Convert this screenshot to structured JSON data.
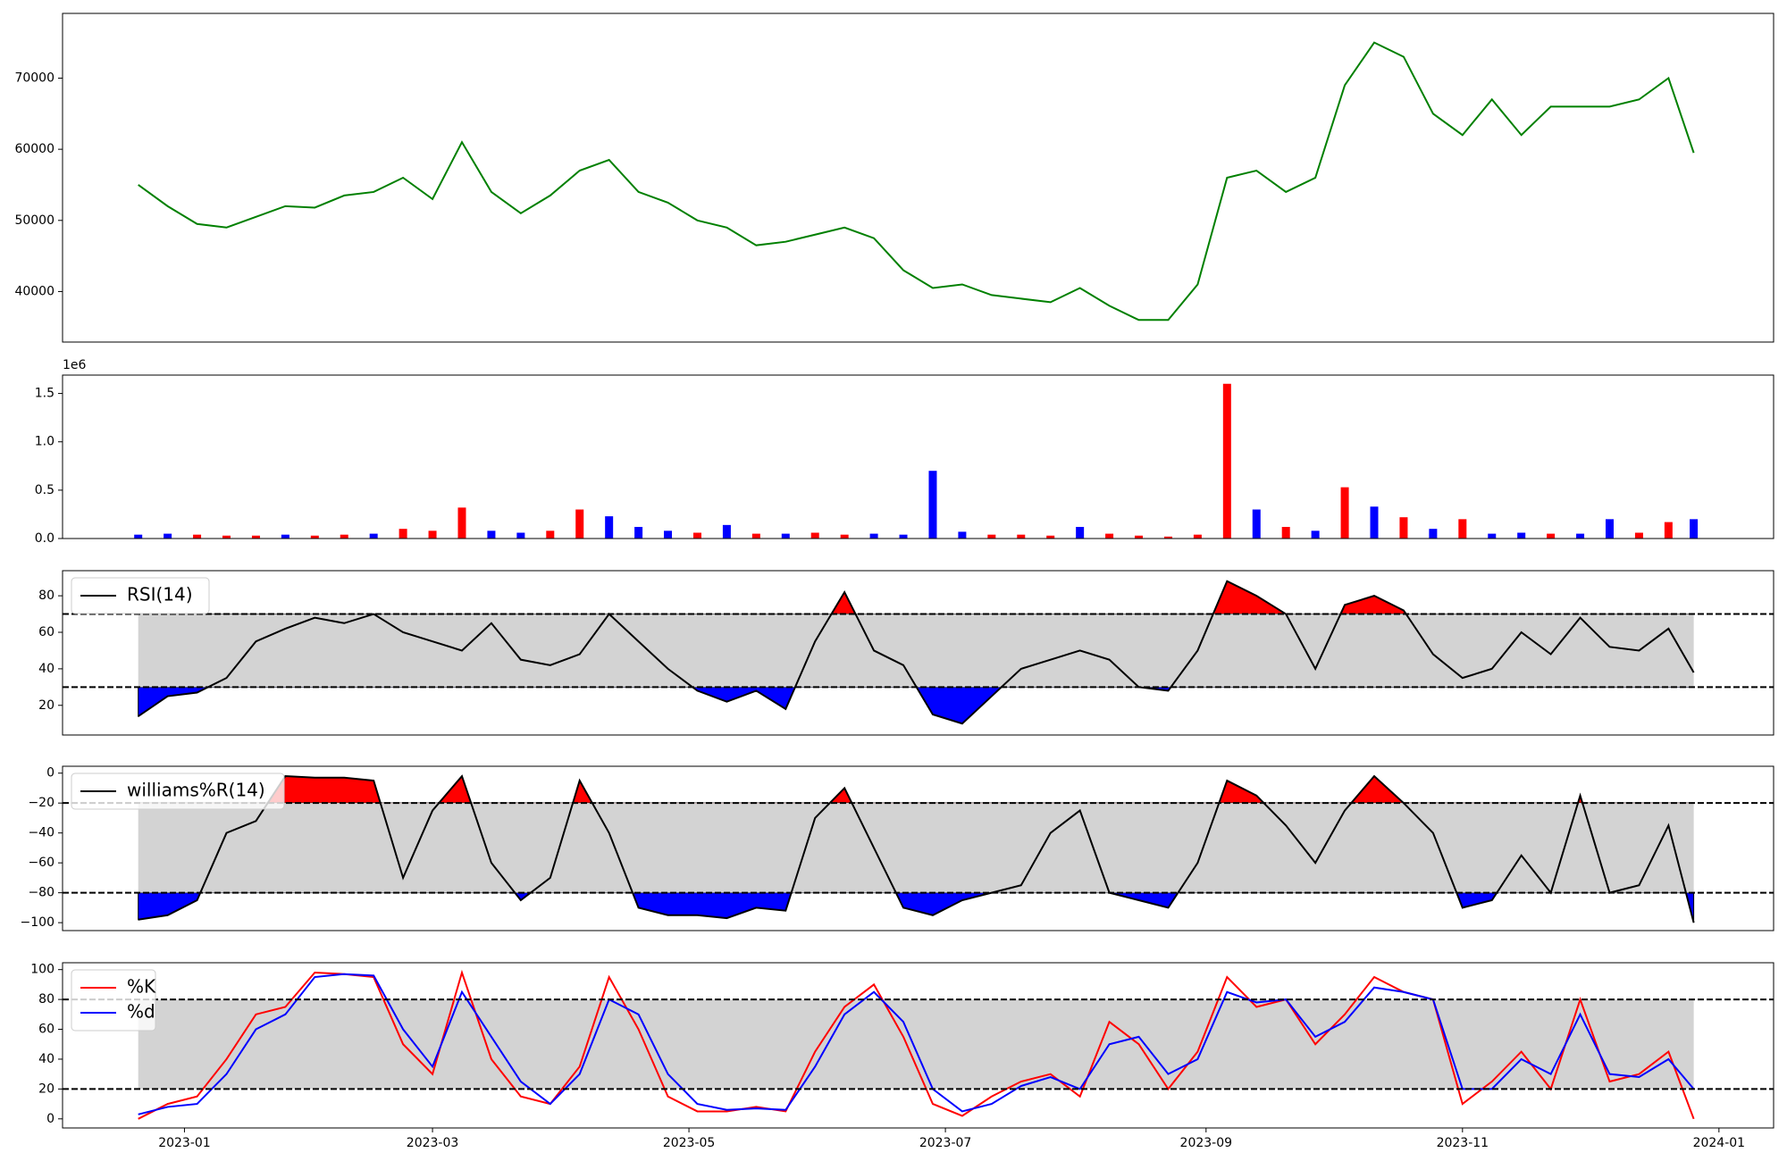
{
  "chart_data": [
    {
      "type": "line",
      "x": [
        "2022-12-21",
        "2022-12-28",
        "2023-01-04",
        "2023-01-11",
        "2023-01-18",
        "2023-01-25",
        "2023-02-01",
        "2023-02-08",
        "2023-02-15",
        "2023-02-22",
        "2023-03-01",
        "2023-03-08",
        "2023-03-15",
        "2023-03-22",
        "2023-03-29",
        "2023-04-05",
        "2023-04-12",
        "2023-04-19",
        "2023-04-26",
        "2023-05-03",
        "2023-05-10",
        "2023-05-17",
        "2023-05-24",
        "2023-05-31",
        "2023-06-07",
        "2023-06-14",
        "2023-06-21",
        "2023-06-28",
        "2023-07-05",
        "2023-07-12",
        "2023-07-19",
        "2023-07-26",
        "2023-08-02",
        "2023-08-09",
        "2023-08-16",
        "2023-08-23",
        "2023-08-30",
        "2023-09-06",
        "2023-09-13",
        "2023-09-20",
        "2023-09-27",
        "2023-10-04",
        "2023-10-11",
        "2023-10-18",
        "2023-10-25",
        "2023-11-01",
        "2023-11-08",
        "2023-11-15",
        "2023-11-22",
        "2023-11-29",
        "2023-12-06",
        "2023-12-13",
        "2023-12-20",
        "2023-12-26"
      ],
      "series": [
        {
          "color": "green",
          "values": [
            55000,
            52000,
            49500,
            49000,
            50500,
            52000,
            51800,
            53500,
            54000,
            56000,
            53000,
            61000,
            54000,
            51000,
            53500,
            57000,
            58500,
            54000,
            52500,
            50000,
            49000,
            46500,
            47000,
            48000,
            49000,
            47500,
            43000,
            40500,
            41000,
            39500,
            39000,
            38500,
            40500,
            38000,
            36000,
            36000,
            41000,
            56000,
            57000,
            54000,
            56000,
            69000,
            75000,
            73000,
            65000,
            62000,
            67000,
            62000,
            66000,
            66000,
            66000,
            67000,
            70000,
            59500
          ]
        }
      ],
      "xlim": [
        "2022-12-03",
        "2024-01-14"
      ],
      "ylim": [
        32900,
        79100
      ],
      "yticks": [
        40000,
        50000,
        60000,
        70000
      ]
    },
    {
      "type": "bar",
      "x": [
        "2022-12-21",
        "2022-12-28",
        "2023-01-04",
        "2023-01-11",
        "2023-01-18",
        "2023-01-25",
        "2023-02-01",
        "2023-02-08",
        "2023-02-15",
        "2023-02-22",
        "2023-03-01",
        "2023-03-08",
        "2023-03-15",
        "2023-03-22",
        "2023-03-29",
        "2023-04-05",
        "2023-04-12",
        "2023-04-19",
        "2023-04-26",
        "2023-05-03",
        "2023-05-10",
        "2023-05-17",
        "2023-05-24",
        "2023-05-31",
        "2023-06-07",
        "2023-06-14",
        "2023-06-21",
        "2023-06-28",
        "2023-07-05",
        "2023-07-12",
        "2023-07-19",
        "2023-07-26",
        "2023-08-02",
        "2023-08-09",
        "2023-08-16",
        "2023-08-23",
        "2023-08-30",
        "2023-09-06",
        "2023-09-13",
        "2023-09-20",
        "2023-09-27",
        "2023-10-04",
        "2023-10-11",
        "2023-10-18",
        "2023-10-25",
        "2023-11-01",
        "2023-11-08",
        "2023-11-15",
        "2023-11-22",
        "2023-11-29",
        "2023-12-06",
        "2023-12-13",
        "2023-12-20",
        "2023-12-26"
      ],
      "values": [
        0.04,
        0.05,
        0.04,
        0.03,
        0.03,
        0.04,
        0.03,
        0.04,
        0.05,
        0.1,
        0.08,
        0.32,
        0.08,
        0.06,
        0.08,
        0.3,
        0.23,
        0.12,
        0.08,
        0.06,
        0.14,
        0.05,
        0.05,
        0.06,
        0.04,
        0.05,
        0.04,
        0.7,
        0.07,
        0.04,
        0.04,
        0.03,
        0.12,
        0.05,
        0.03,
        0.02,
        0.04,
        1.6,
        0.3,
        0.12,
        0.08,
        0.53,
        0.33,
        0.22,
        0.1,
        0.2,
        0.05,
        0.06,
        0.05,
        0.05,
        0.2,
        0.06,
        0.17,
        0.2
      ],
      "colors": [
        "blue",
        "blue",
        "red",
        "red",
        "red",
        "blue",
        "red",
        "red",
        "blue",
        "red",
        "red",
        "red",
        "blue",
        "blue",
        "red",
        "red",
        "blue",
        "blue",
        "blue",
        "red",
        "blue",
        "red",
        "blue",
        "red",
        "red",
        "blue",
        "blue",
        "blue",
        "blue",
        "red",
        "red",
        "red",
        "blue",
        "red",
        "red",
        "red",
        "red",
        "red",
        "blue",
        "red",
        "blue",
        "red",
        "blue",
        "red",
        "blue",
        "red",
        "blue",
        "blue",
        "red",
        "blue",
        "blue",
        "red",
        "red",
        "blue"
      ],
      "xlim": [
        "2022-12-03",
        "2024-01-14"
      ],
      "ylim": [
        0,
        1.69
      ],
      "offset_label": "1e6",
      "yticks": [
        {
          "value": 0,
          "label": "0.0"
        },
        0.5,
        {
          "value": 1,
          "label": "1.0"
        },
        1.5
      ]
    },
    {
      "type": "line",
      "x": [
        "2022-12-21",
        "2022-12-28",
        "2023-01-04",
        "2023-01-11",
        "2023-01-18",
        "2023-01-25",
        "2023-02-01",
        "2023-02-08",
        "2023-02-15",
        "2023-02-22",
        "2023-03-01",
        "2023-03-08",
        "2023-03-15",
        "2023-03-22",
        "2023-03-29",
        "2023-04-05",
        "2023-04-12",
        "2023-04-19",
        "2023-04-26",
        "2023-05-03",
        "2023-05-10",
        "2023-05-17",
        "2023-05-24",
        "2023-05-31",
        "2023-06-07",
        "2023-06-14",
        "2023-06-21",
        "2023-06-28",
        "2023-07-05",
        "2023-07-12",
        "2023-07-19",
        "2023-07-26",
        "2023-08-02",
        "2023-08-09",
        "2023-08-16",
        "2023-08-23",
        "2023-08-30",
        "2023-09-06",
        "2023-09-13",
        "2023-09-20",
        "2023-09-27",
        "2023-10-04",
        "2023-10-11",
        "2023-10-18",
        "2023-10-25",
        "2023-11-01",
        "2023-11-08",
        "2023-11-15",
        "2023-11-22",
        "2023-11-29",
        "2023-12-06",
        "2023-12-13",
        "2023-12-20",
        "2023-12-26"
      ],
      "series": [
        {
          "name": "RSI(14)",
          "color": "black",
          "values": [
            14,
            25,
            27,
            35,
            55,
            62,
            68,
            65,
            70,
            60,
            55,
            50,
            65,
            45,
            42,
            48,
            70,
            55,
            40,
            28,
            22,
            28,
            18,
            55,
            82,
            50,
            42,
            15,
            10,
            25,
            40,
            45,
            50,
            45,
            30,
            28,
            50,
            88,
            80,
            70,
            40,
            75,
            80,
            72,
            48,
            35,
            40,
            60,
            48,
            68,
            52,
            50,
            62,
            38
          ]
        }
      ],
      "upper_level": 70,
      "lower_level": 30,
      "band_color": "lightgray",
      "upper_fill_color": "red",
      "lower_fill_color": "blue",
      "legend": "upper left",
      "xlim": [
        "2022-12-03",
        "2024-01-14"
      ],
      "ylim": [
        3.75,
        93.75
      ],
      "yticks": [
        20,
        40,
        60,
        80
      ]
    },
    {
      "type": "line",
      "x": [
        "2022-12-21",
        "2022-12-28",
        "2023-01-04",
        "2023-01-11",
        "2023-01-18",
        "2023-01-25",
        "2023-02-01",
        "2023-02-08",
        "2023-02-15",
        "2023-02-22",
        "2023-03-01",
        "2023-03-08",
        "2023-03-15",
        "2023-03-22",
        "2023-03-29",
        "2023-04-05",
        "2023-04-12",
        "2023-04-19",
        "2023-04-26",
        "2023-05-03",
        "2023-05-10",
        "2023-05-17",
        "2023-05-24",
        "2023-05-31",
        "2023-06-07",
        "2023-06-14",
        "2023-06-21",
        "2023-06-28",
        "2023-07-05",
        "2023-07-12",
        "2023-07-19",
        "2023-07-26",
        "2023-08-02",
        "2023-08-09",
        "2023-08-16",
        "2023-08-23",
        "2023-08-30",
        "2023-09-06",
        "2023-09-13",
        "2023-09-20",
        "2023-09-27",
        "2023-10-04",
        "2023-10-11",
        "2023-10-18",
        "2023-10-25",
        "2023-11-01",
        "2023-11-08",
        "2023-11-15",
        "2023-11-22",
        "2023-11-29",
        "2023-12-06",
        "2023-12-13",
        "2023-12-20",
        "2023-12-26"
      ],
      "series": [
        {
          "name": "williams%R(14)",
          "color": "black",
          "values": [
            -98,
            -95,
            -85,
            -40,
            -32,
            -2,
            -3,
            -3,
            -5,
            -70,
            -25,
            -2,
            -60,
            -85,
            -70,
            -5,
            -40,
            -90,
            -95,
            -95,
            -97,
            -90,
            -92,
            -30,
            -10,
            -50,
            -90,
            -95,
            -85,
            -80,
            -75,
            -40,
            -25,
            -80,
            -85,
            -90,
            -60,
            -5,
            -15,
            -35,
            -60,
            -25,
            -2,
            -20,
            -40,
            -90,
            -85,
            -55,
            -80,
            -15,
            -80,
            -75,
            -35,
            -100
          ]
        }
      ],
      "upper_level": -20,
      "lower_level": -80,
      "band_color": "lightgray",
      "upper_fill_color": "red",
      "lower_fill_color": "blue",
      "legend": "upper left",
      "xlim": [
        "2022-12-03",
        "2024-01-14"
      ],
      "ylim": [
        -105.3,
        4.6
      ],
      "yticks": [
        {
          "value": -100,
          "label": "−100"
        },
        {
          "value": -80,
          "label": "−80"
        },
        {
          "value": -60,
          "label": "−60"
        },
        {
          "value": -40,
          "label": "−40"
        },
        {
          "value": -20,
          "label": "−20"
        },
        0
      ]
    },
    {
      "type": "line",
      "x": [
        "2022-12-21",
        "2022-12-28",
        "2023-01-04",
        "2023-01-11",
        "2023-01-18",
        "2023-01-25",
        "2023-02-01",
        "2023-02-08",
        "2023-02-15",
        "2023-02-22",
        "2023-03-01",
        "2023-03-08",
        "2023-03-15",
        "2023-03-22",
        "2023-03-29",
        "2023-04-05",
        "2023-04-12",
        "2023-04-19",
        "2023-04-26",
        "2023-05-03",
        "2023-05-10",
        "2023-05-17",
        "2023-05-24",
        "2023-05-31",
        "2023-06-07",
        "2023-06-14",
        "2023-06-21",
        "2023-06-28",
        "2023-07-05",
        "2023-07-12",
        "2023-07-19",
        "2023-07-26",
        "2023-08-02",
        "2023-08-09",
        "2023-08-16",
        "2023-08-23",
        "2023-08-30",
        "2023-09-06",
        "2023-09-13",
        "2023-09-20",
        "2023-09-27",
        "2023-10-04",
        "2023-10-11",
        "2023-10-18",
        "2023-10-25",
        "2023-11-01",
        "2023-11-08",
        "2023-11-15",
        "2023-11-22",
        "2023-11-29",
        "2023-12-06",
        "2023-12-13",
        "2023-12-20",
        "2023-12-26"
      ],
      "series": [
        {
          "name": "%K",
          "color": "red",
          "values": [
            0,
            10,
            15,
            40,
            70,
            75,
            98,
            97,
            95,
            50,
            30,
            98,
            40,
            15,
            10,
            35,
            95,
            60,
            15,
            5,
            5,
            8,
            5,
            45,
            75,
            90,
            55,
            10,
            2,
            15,
            25,
            30,
            15,
            65,
            50,
            20,
            45,
            95,
            75,
            80,
            50,
            70,
            95,
            85,
            80,
            10,
            25,
            45,
            20,
            80,
            25,
            30,
            45,
            0
          ]
        },
        {
          "name": "%d",
          "color": "blue",
          "values": [
            3,
            8,
            10,
            30,
            60,
            70,
            95,
            97,
            96,
            60,
            35,
            85,
            55,
            25,
            10,
            30,
            80,
            70,
            30,
            10,
            6,
            7,
            6,
            35,
            70,
            85,
            65,
            20,
            5,
            10,
            22,
            28,
            20,
            50,
            55,
            30,
            40,
            85,
            78,
            80,
            55,
            65,
            88,
            85,
            80,
            20,
            20,
            40,
            30,
            70,
            30,
            28,
            40,
            20
          ]
        }
      ],
      "upper_level": 80,
      "lower_level": 20,
      "band_color": "lightgray",
      "legend": "upper left",
      "xlim": [
        "2022-12-03",
        "2024-01-14"
      ],
      "ylim": [
        -6.1,
        104.6
      ],
      "yticks": [
        0,
        20,
        40,
        60,
        80,
        100
      ],
      "xticks": [
        {
          "value": "2023-01-01",
          "label": "2023-01"
        },
        {
          "value": "2023-03-01",
          "label": "2023-03"
        },
        {
          "value": "2023-05-01",
          "label": "2023-05"
        },
        {
          "value": "2023-07-01",
          "label": "2023-07"
        },
        {
          "value": "2023-09-01",
          "label": "2023-09"
        },
        {
          "value": "2023-11-01",
          "label": "2023-11"
        },
        {
          "value": "2024-01-01",
          "label": "2024-01"
        }
      ]
    }
  ]
}
